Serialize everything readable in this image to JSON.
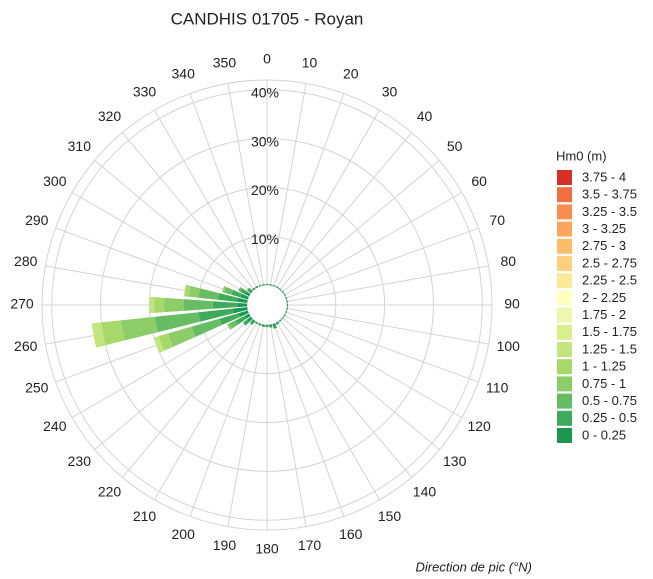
{
  "chart_data": {
    "type": "polar_stacked_bar",
    "title": "CANDHIS 01705 - Royan",
    "axis_label": "Direction de pic (°N)",
    "legend_title": "Hm0 (m)",
    "legend": "right",
    "grid": true,
    "categories": [
      0,
      10,
      20,
      30,
      40,
      50,
      60,
      70,
      80,
      90,
      100,
      110,
      120,
      130,
      140,
      150,
      160,
      170,
      180,
      190,
      200,
      210,
      220,
      230,
      240,
      250,
      260,
      270,
      280,
      290,
      300,
      310,
      320,
      330,
      340,
      350
    ],
    "rlim": [
      0,
      42
    ],
    "rticks": [
      {
        "value": 10,
        "label": "10%"
      },
      {
        "value": 20,
        "label": "20%"
      },
      {
        "value": 30,
        "label": "30%"
      },
      {
        "value": 40,
        "label": "40%"
      }
    ],
    "series": [
      {
        "name": "0 - 0.25",
        "color": "#1a9850",
        "values": [
          0.2,
          0.2,
          0.2,
          0.2,
          0.2,
          0.2,
          0.2,
          0.2,
          0.2,
          0.2,
          0.2,
          0.2,
          0.2,
          0.2,
          0.2,
          0.4,
          0.6,
          0.4,
          0.4,
          0.4,
          0.3,
          0.3,
          0.5,
          1,
          1,
          2,
          3,
          2,
          2,
          1.5,
          1,
          0.5,
          0.3,
          0.3,
          0.2,
          0.2
        ]
      },
      {
        "name": "0.25 - 0.5",
        "color": "#3faa59",
        "values": [
          0,
          0,
          0,
          0,
          0,
          0,
          0,
          0,
          0,
          0,
          0,
          0,
          0,
          0,
          0,
          0,
          0.4,
          0.2,
          0,
          0,
          0,
          0,
          0.5,
          1,
          2,
          4,
          7,
          5,
          4,
          2,
          1,
          0.5,
          0,
          0,
          0,
          0
        ]
      },
      {
        "name": "0.5 - 0.75",
        "color": "#66bd63",
        "values": [
          0,
          0,
          0,
          0,
          0,
          0,
          0,
          0,
          0,
          0,
          0,
          0,
          0,
          0,
          0,
          0,
          0,
          0,
          0,
          0,
          0,
          0,
          0,
          0,
          1.5,
          6,
          9,
          6,
          4,
          1.5,
          0.5,
          0,
          0,
          0,
          0,
          0
        ]
      },
      {
        "name": "0.75 - 1",
        "color": "#8ccd67",
        "values": [
          0,
          0,
          0,
          0,
          0,
          0,
          0,
          0,
          0,
          0,
          0,
          0,
          0,
          0,
          0,
          0,
          0,
          0,
          0,
          0,
          0,
          0,
          0,
          0,
          0.5,
          5,
          7,
          4,
          2,
          0.5,
          0,
          0,
          0,
          0,
          0,
          0
        ]
      },
      {
        "name": "1 - 1.25",
        "color": "#a6d96a",
        "values": [
          0,
          0,
          0,
          0,
          0,
          0,
          0,
          0,
          0,
          0,
          0,
          0,
          0,
          0,
          0,
          0,
          0,
          0,
          0,
          0,
          0,
          0,
          0,
          0,
          0,
          2,
          4,
          2,
          1,
          0,
          0,
          0,
          0,
          0,
          0,
          0
        ]
      },
      {
        "name": "1.25 - 1.5",
        "color": "#c2e57e",
        "values": [
          0,
          0,
          0,
          0,
          0,
          0,
          0,
          0,
          0,
          0,
          0,
          0,
          0,
          0,
          0,
          0,
          0,
          0,
          0,
          0,
          0,
          0,
          0,
          0,
          0,
          1,
          2,
          1,
          0,
          0,
          0,
          0,
          0,
          0,
          0,
          0
        ]
      },
      {
        "name": "1.5 - 1.75",
        "color": "#d9ef8b",
        "values": [
          0,
          0,
          0,
          0,
          0,
          0,
          0,
          0,
          0,
          0,
          0,
          0,
          0,
          0,
          0,
          0,
          0,
          0,
          0,
          0,
          0,
          0,
          0,
          0,
          0,
          0,
          0,
          0,
          0,
          0,
          0,
          0,
          0,
          0,
          0,
          0
        ]
      },
      {
        "name": "1.75 - 2",
        "color": "#eef7b0",
        "values": [
          0,
          0,
          0,
          0,
          0,
          0,
          0,
          0,
          0,
          0,
          0,
          0,
          0,
          0,
          0,
          0,
          0,
          0,
          0,
          0,
          0,
          0,
          0,
          0,
          0,
          0,
          0,
          0,
          0,
          0,
          0,
          0,
          0,
          0,
          0,
          0
        ]
      },
      {
        "name": "2 - 2.25",
        "color": "#ffffbf",
        "values": [
          0,
          0,
          0,
          0,
          0,
          0,
          0,
          0,
          0,
          0,
          0,
          0,
          0,
          0,
          0,
          0,
          0,
          0,
          0,
          0,
          0,
          0,
          0,
          0,
          0,
          0,
          0,
          0,
          0,
          0,
          0,
          0,
          0,
          0,
          0,
          0
        ]
      },
      {
        "name": "2.25 - 2.5",
        "color": "#fee89a",
        "values": [
          0,
          0,
          0,
          0,
          0,
          0,
          0,
          0,
          0,
          0,
          0,
          0,
          0,
          0,
          0,
          0,
          0,
          0,
          0,
          0,
          0,
          0,
          0,
          0,
          0,
          0,
          0,
          0,
          0,
          0,
          0,
          0,
          0,
          0,
          0,
          0
        ]
      },
      {
        "name": "2.5 - 2.75",
        "color": "#fed07e",
        "values": [
          0,
          0,
          0,
          0,
          0,
          0,
          0,
          0,
          0,
          0,
          0,
          0,
          0,
          0,
          0,
          0,
          0,
          0,
          0,
          0,
          0,
          0,
          0,
          0,
          0,
          0,
          0,
          0,
          0,
          0,
          0,
          0,
          0,
          0,
          0,
          0
        ]
      },
      {
        "name": "2.75 - 3",
        "color": "#fdbc6a",
        "values": [
          0,
          0,
          0,
          0,
          0,
          0,
          0,
          0,
          0,
          0,
          0,
          0,
          0,
          0,
          0,
          0,
          0,
          0,
          0,
          0,
          0,
          0,
          0,
          0,
          0,
          0,
          0,
          0,
          0,
          0,
          0,
          0,
          0,
          0,
          0,
          0
        ]
      },
      {
        "name": "3 - 3.25",
        "color": "#fca55d",
        "values": [
          0,
          0,
          0,
          0,
          0,
          0,
          0,
          0,
          0,
          0,
          0,
          0,
          0,
          0,
          0,
          0,
          0,
          0,
          0,
          0,
          0,
          0,
          0,
          0,
          0,
          0,
          0,
          0,
          0,
          0,
          0,
          0,
          0,
          0,
          0,
          0
        ]
      },
      {
        "name": "3.25 - 3.5",
        "color": "#f88d52",
        "values": [
          0,
          0,
          0,
          0,
          0,
          0,
          0,
          0,
          0,
          0,
          0,
          0,
          0,
          0,
          0,
          0,
          0,
          0,
          0,
          0,
          0,
          0,
          0,
          0,
          0,
          0,
          0,
          0,
          0,
          0,
          0,
          0,
          0,
          0,
          0,
          0
        ]
      },
      {
        "name": "3.5 - 3.75",
        "color": "#f46d43",
        "values": [
          0,
          0,
          0,
          0,
          0,
          0,
          0,
          0,
          0,
          0,
          0,
          0,
          0,
          0,
          0,
          0,
          0,
          0,
          0,
          0,
          0,
          0,
          0,
          0,
          0,
          0,
          0,
          0,
          0,
          0,
          0,
          0,
          0,
          0,
          0,
          0
        ]
      },
      {
        "name": "3.75 - 4",
        "color": "#d73027",
        "values": [
          0,
          0,
          0,
          0,
          0,
          0,
          0,
          0,
          0,
          0,
          0,
          0,
          0,
          0,
          0,
          0,
          0,
          0,
          0,
          0,
          0,
          0,
          0,
          0,
          0,
          0,
          0,
          0,
          0,
          0,
          0,
          0,
          0,
          0,
          0,
          0
        ]
      }
    ]
  }
}
